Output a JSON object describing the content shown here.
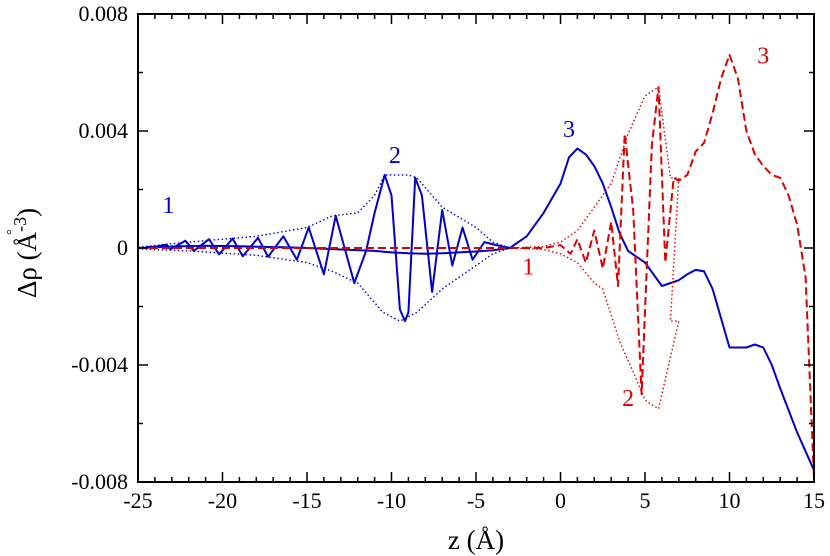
{
  "chart_data": {
    "type": "line",
    "title": "",
    "xlabel": "z (Å)",
    "ylabel_main": "Δρ (",
    "ylabel_unit": "Å",
    "ylabel_ring": "°",
    "ylabel_exp": "-3",
    "ylabel_close": ")",
    "xlim": [
      -25,
      15
    ],
    "ylim": [
      -0.008,
      0.008
    ],
    "x_ticks": [
      -25,
      -20,
      -15,
      -10,
      -5,
      0,
      5,
      10,
      15
    ],
    "x_tick_labels": [
      "-25",
      "-20",
      "-15",
      "-10",
      "-5",
      "0",
      "5",
      "10",
      "15"
    ],
    "y_ticks": [
      -0.008,
      -0.004,
      0,
      0.004,
      0.008
    ],
    "y_tick_labels": [
      "-0.008",
      "-0.004",
      "0",
      "0.004",
      "0.008"
    ],
    "colors": {
      "blue": "#0000cc",
      "red": "#dd0000"
    },
    "series": [
      {
        "color": "#0000cc",
        "style": "solid",
        "points": [
          [
            -25,
            0
          ],
          [
            -23,
            5e-05
          ],
          [
            -21,
            8e-05
          ],
          [
            -19,
            6e-05
          ],
          [
            -17,
            3e-05
          ],
          [
            -16,
            2e-05
          ],
          [
            -15,
            0
          ],
          [
            -13,
            -5e-05
          ],
          [
            -11,
            -0.0001
          ],
          [
            -10,
            -0.00015
          ],
          [
            -9,
            -0.00018
          ],
          [
            -8,
            -0.0002
          ],
          [
            -7,
            -0.00018
          ],
          [
            -6,
            -0.00015
          ],
          [
            -5,
            -0.00012
          ],
          [
            -4,
            -8e-05
          ],
          [
            -3,
            0
          ],
          [
            -2,
            0.0004
          ],
          [
            -1,
            0.0012
          ],
          [
            0,
            0.0022
          ],
          [
            0.5,
            0.0031
          ],
          [
            1,
            0.0034
          ],
          [
            1.5,
            0.0032
          ],
          [
            2,
            0.0028
          ],
          [
            2.5,
            0.0022
          ],
          [
            3,
            0.0014
          ],
          [
            3.5,
            0.0005
          ],
          [
            4,
            -0.0001
          ],
          [
            5,
            -0.0005
          ],
          [
            6,
            -0.0013
          ],
          [
            7,
            -0.0011
          ],
          [
            7.5,
            -0.0009
          ],
          [
            8,
            -0.00075
          ],
          [
            8.5,
            -0.0008
          ],
          [
            9,
            -0.0014
          ],
          [
            10,
            -0.0034
          ],
          [
            11,
            -0.0034
          ],
          [
            11.5,
            -0.0033
          ],
          [
            12,
            -0.0034
          ],
          [
            12.5,
            -0.004
          ],
          [
            13,
            -0.0048
          ],
          [
            14,
            -0.0063
          ],
          [
            15,
            -0.0076
          ]
        ]
      },
      {
        "color": "#0000cc",
        "style": "solid",
        "points": [
          [
            -24.5,
            3e-05
          ],
          [
            -24,
            4e-05
          ],
          [
            -23.3,
            0.00012
          ],
          [
            -23.1,
            -5e-05
          ],
          [
            -22.2,
            0.00025
          ],
          [
            -21.7,
            -0.0001
          ],
          [
            -20.8,
            0.0003
          ],
          [
            -20.2,
            -0.00022
          ],
          [
            -19.4,
            0.00032
          ],
          [
            -18.8,
            -0.00028
          ],
          [
            -17.9,
            0.00035
          ],
          [
            -17.3,
            -0.0003
          ],
          [
            -16.4,
            0.0004
          ],
          [
            -15.6,
            -0.0004
          ],
          [
            -14.9,
            0.0007
          ],
          [
            -14,
            -0.0009
          ],
          [
            -13.3,
            0.0011
          ],
          [
            -12.2,
            -0.0012
          ],
          [
            -11.5,
            -0.0001
          ],
          [
            -11,
            0.0012
          ],
          [
            -10.4,
            0.0025
          ],
          [
            -10,
            0.0018
          ],
          [
            -9.5,
            -0.0021
          ],
          [
            -9.2,
            -0.0025
          ],
          [
            -9,
            -0.0022
          ],
          [
            -8.6,
            0.0024
          ],
          [
            -8.2,
            0.0018
          ],
          [
            -7.6,
            -0.0015
          ],
          [
            -7,
            0.0013
          ],
          [
            -6.4,
            -0.0006
          ],
          [
            -5.8,
            0.0007
          ],
          [
            -5.2,
            -0.0004
          ],
          [
            -4.5,
            0.0002
          ],
          [
            -3.8,
            0.0001
          ],
          [
            -3,
            0
          ]
        ]
      },
      {
        "color": "#0000cc",
        "style": "dotted",
        "points": [
          [
            -25,
            3e-05
          ],
          [
            -22,
            0.0002
          ],
          [
            -18,
            0.0004
          ],
          [
            -15,
            0.0007
          ],
          [
            -13.5,
            0.0011
          ],
          [
            -12,
            0.0012
          ],
          [
            -11,
            0.0018
          ],
          [
            -10.4,
            0.0025
          ],
          [
            -9,
            0.0025
          ],
          [
            -8.5,
            0.0024
          ],
          [
            -7,
            0.0014
          ],
          [
            -5,
            0.0007
          ],
          [
            -4,
            0.0002
          ],
          [
            -3,
            0
          ],
          [
            -4,
            -0.0002
          ],
          [
            -5,
            -0.0006
          ],
          [
            -7,
            -0.0014
          ],
          [
            -8.5,
            -0.0022
          ],
          [
            -9.5,
            -0.0025
          ],
          [
            -10.5,
            -0.0022
          ],
          [
            -12,
            -0.0012
          ],
          [
            -13.5,
            -0.0008
          ],
          [
            -15,
            -0.0005
          ],
          [
            -18,
            -0.00025
          ],
          [
            -22,
            -0.0001
          ],
          [
            -25,
            -3e-05
          ]
        ]
      },
      {
        "color": "#dd0000",
        "style": "dashed",
        "points": [
          [
            -25,
            0
          ],
          [
            -10,
            0
          ],
          [
            -3,
            0
          ],
          [
            -1,
            0
          ],
          [
            0,
            0.0001
          ],
          [
            0.6,
            -0.0002
          ],
          [
            1,
            0.0003
          ],
          [
            1.5,
            -0.0005
          ],
          [
            2,
            0.0006
          ],
          [
            2.5,
            -0.0007
          ],
          [
            3,
            0.0009
          ],
          [
            3.4,
            -0.0013
          ],
          [
            3.8,
            0.0039
          ],
          [
            4.3,
            0.0013
          ],
          [
            4.8,
            -0.005
          ],
          [
            5.4,
            0.0035
          ],
          [
            5.8,
            0.0055
          ],
          [
            6.2,
            -0.0005
          ],
          [
            6.7,
            0.0024
          ],
          [
            7,
            0.0023
          ],
          [
            7.5,
            0.0025
          ],
          [
            8,
            0.0033
          ],
          [
            8.5,
            0.0036
          ],
          [
            9,
            0.0046
          ],
          [
            9.5,
            0.0058
          ],
          [
            10,
            0.0066
          ],
          [
            10.5,
            0.0058
          ],
          [
            11,
            0.004
          ],
          [
            11.5,
            0.0032
          ],
          [
            12,
            0.0028
          ],
          [
            12.5,
            0.0025
          ],
          [
            13,
            0.0024
          ],
          [
            13.5,
            0.0018
          ],
          [
            14,
            0.0008
          ],
          [
            14.5,
            -0.001
          ],
          [
            15,
            -0.0079
          ]
        ]
      },
      {
        "color": "#dd0000",
        "style": "dotted",
        "points": [
          [
            -3,
            0
          ],
          [
            -1,
            5e-05
          ],
          [
            0,
            0.0002
          ],
          [
            1,
            0.0006
          ],
          [
            2,
            0.0014
          ],
          [
            3,
            0.0022
          ],
          [
            4,
            0.0039
          ],
          [
            5,
            0.0052
          ],
          [
            5.8,
            0.0055
          ],
          [
            6.5,
            0.0024
          ],
          [
            7,
            0.0024
          ],
          [
            6.5,
            -0.0025
          ],
          [
            7,
            -0.0025
          ],
          [
            5.8,
            -0.0055
          ],
          [
            5,
            -0.0052
          ],
          [
            4.5,
            -0.0045
          ],
          [
            3.5,
            -0.0032
          ],
          [
            2.5,
            -0.0014
          ],
          [
            2,
            -0.0012
          ],
          [
            1,
            -0.0005
          ],
          [
            0,
            -0.0002
          ],
          [
            -1,
            -5e-05
          ],
          [
            -3,
            0
          ]
        ]
      }
    ],
    "annotations": [
      {
        "text": "1",
        "x": -23.2,
        "y": 0.0012,
        "color": "#0000cc"
      },
      {
        "text": "2",
        "x": -9.8,
        "y": 0.0029,
        "color": "#0000cc"
      },
      {
        "text": "3",
        "x": 0.5,
        "y": 0.0038,
        "color": "#0000cc"
      },
      {
        "text": "1",
        "x": -1.9,
        "y": -0.0009,
        "color": "#dd0000"
      },
      {
        "text": "2",
        "x": 4.0,
        "y": -0.0054,
        "color": "#dd0000"
      },
      {
        "text": "3",
        "x": 12.0,
        "y": 0.0063,
        "color": "#dd0000"
      }
    ]
  }
}
